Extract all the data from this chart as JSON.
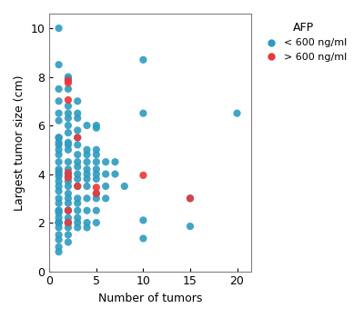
{
  "title": "",
  "xlabel": "Number of tumors",
  "ylabel": "Largest tumor size (cm)",
  "xlim": [
    0,
    21.5
  ],
  "ylim": [
    0,
    10.6
  ],
  "xticks": [
    0,
    5,
    10,
    15,
    20
  ],
  "yticks": [
    0,
    2,
    4,
    6,
    8,
    10
  ],
  "legend_title": "AFP",
  "legend_labels": [
    "< 600 ng/ml",
    "> 600 ng/ml"
  ],
  "blue_color": "#2E9BBF",
  "red_color": "#E8373A",
  "blue_points": [
    [
      1,
      10.0
    ],
    [
      1,
      8.5
    ],
    [
      1,
      7.5
    ],
    [
      1,
      7.0
    ],
    [
      1,
      6.5
    ],
    [
      1,
      6.2
    ],
    [
      1,
      5.5
    ],
    [
      1,
      5.5
    ],
    [
      1,
      5.3
    ],
    [
      1,
      5.2
    ],
    [
      1,
      5.0
    ],
    [
      1,
      4.8
    ],
    [
      1,
      4.5
    ],
    [
      1,
      4.2
    ],
    [
      1,
      4.1
    ],
    [
      1,
      4.0
    ],
    [
      1,
      3.9
    ],
    [
      1,
      3.7
    ],
    [
      1,
      3.5
    ],
    [
      1,
      3.3
    ],
    [
      1,
      3.0
    ],
    [
      1,
      2.8
    ],
    [
      1,
      2.5
    ],
    [
      1,
      2.5
    ],
    [
      1,
      2.4
    ],
    [
      1,
      2.2
    ],
    [
      1,
      2.0
    ],
    [
      1,
      2.0
    ],
    [
      1,
      2.0
    ],
    [
      1,
      2.0
    ],
    [
      1,
      1.8
    ],
    [
      1,
      1.5
    ],
    [
      1,
      1.3
    ],
    [
      1,
      1.0
    ],
    [
      1,
      0.8
    ],
    [
      2,
      8.0
    ],
    [
      2,
      7.9
    ],
    [
      2,
      7.5
    ],
    [
      2,
      6.8
    ],
    [
      2,
      6.5
    ],
    [
      2,
      6.3
    ],
    [
      2,
      6.0
    ],
    [
      2,
      5.7
    ],
    [
      2,
      5.3
    ],
    [
      2,
      5.2
    ],
    [
      2,
      5.0
    ],
    [
      2,
      4.5
    ],
    [
      2,
      4.2
    ],
    [
      2,
      4.0
    ],
    [
      2,
      3.9
    ],
    [
      2,
      3.7
    ],
    [
      2,
      3.5
    ],
    [
      2,
      3.2
    ],
    [
      2,
      3.0
    ],
    [
      2,
      2.8
    ],
    [
      2,
      2.5
    ],
    [
      2,
      2.5
    ],
    [
      2,
      2.2
    ],
    [
      2,
      2.0
    ],
    [
      2,
      2.0
    ],
    [
      2,
      2.0
    ],
    [
      2,
      1.8
    ],
    [
      2,
      1.5
    ],
    [
      2,
      1.2
    ],
    [
      3,
      7.0
    ],
    [
      3,
      6.5
    ],
    [
      3,
      6.3
    ],
    [
      3,
      5.8
    ],
    [
      3,
      5.5
    ],
    [
      3,
      5.2
    ],
    [
      3,
      4.8
    ],
    [
      3,
      4.5
    ],
    [
      3,
      4.3
    ],
    [
      3,
      4.0
    ],
    [
      3,
      3.8
    ],
    [
      3,
      3.5
    ],
    [
      3,
      3.0
    ],
    [
      3,
      2.8
    ],
    [
      3,
      2.5
    ],
    [
      3,
      2.2
    ],
    [
      3,
      2.0
    ],
    [
      3,
      1.8
    ],
    [
      4,
      6.0
    ],
    [
      4,
      5.0
    ],
    [
      4,
      4.8
    ],
    [
      4,
      4.5
    ],
    [
      4,
      4.2
    ],
    [
      4,
      4.0
    ],
    [
      4,
      3.8
    ],
    [
      4,
      3.5
    ],
    [
      4,
      3.0
    ],
    [
      4,
      2.5
    ],
    [
      4,
      2.0
    ],
    [
      4,
      1.8
    ],
    [
      5,
      6.0
    ],
    [
      5,
      5.9
    ],
    [
      5,
      5.0
    ],
    [
      5,
      4.8
    ],
    [
      5,
      4.5
    ],
    [
      5,
      4.2
    ],
    [
      5,
      4.0
    ],
    [
      5,
      3.8
    ],
    [
      5,
      3.2
    ],
    [
      5,
      3.0
    ],
    [
      5,
      2.5
    ],
    [
      5,
      2.0
    ],
    [
      6,
      4.5
    ],
    [
      6,
      4.0
    ],
    [
      6,
      3.5
    ],
    [
      6,
      3.0
    ],
    [
      7,
      4.5
    ],
    [
      7,
      4.0
    ],
    [
      8,
      3.5
    ],
    [
      10,
      8.7
    ],
    [
      10,
      6.5
    ],
    [
      10,
      2.1
    ],
    [
      10,
      1.35
    ],
    [
      15,
      3.0
    ],
    [
      15,
      1.85
    ],
    [
      20,
      6.5
    ]
  ],
  "red_points": [
    [
      2,
      7.85
    ],
    [
      2,
      7.75
    ],
    [
      2,
      7.05
    ],
    [
      2,
      4.05
    ],
    [
      2,
      3.85
    ],
    [
      2,
      2.5
    ],
    [
      2,
      2.0
    ],
    [
      3,
      5.5
    ],
    [
      3,
      3.5
    ],
    [
      5,
      3.45
    ],
    [
      5,
      3.2
    ],
    [
      10,
      3.95
    ],
    [
      15,
      3.0
    ]
  ],
  "marker_size": 35,
  "alpha": 0.9,
  "figsize": [
    4.0,
    3.5
  ],
  "dpi": 100
}
